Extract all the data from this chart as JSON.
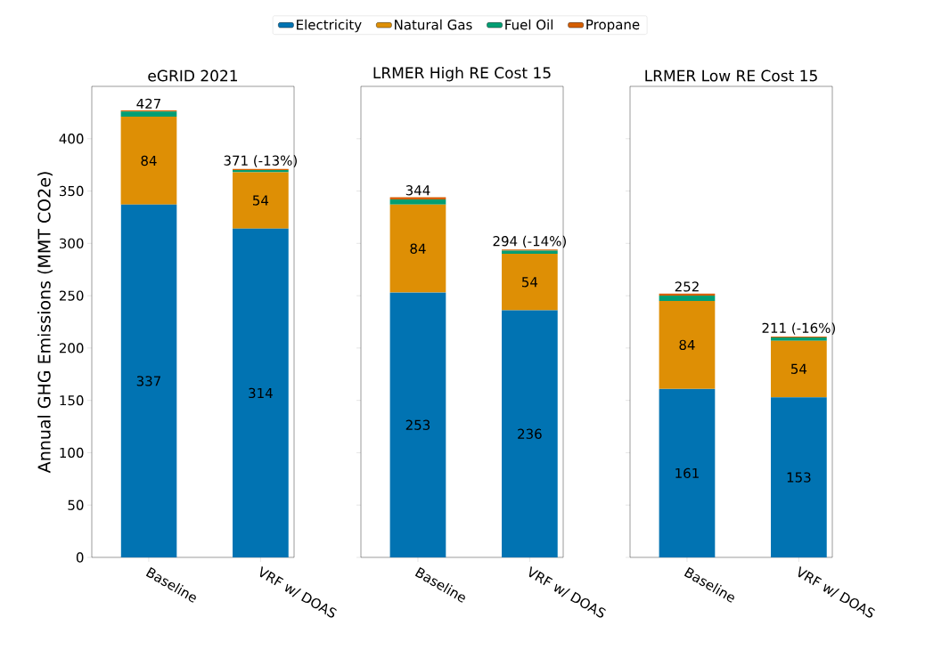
{
  "chart_data": [
    {
      "type": "bar",
      "stacked": true,
      "title": "eGRID 2021",
      "ylabel": "Annual GHG Emissions (MMT CO2e)",
      "categories": [
        "Baseline",
        "VRF w/ DOAS"
      ],
      "ylim": [
        0,
        450
      ],
      "yticks": [
        0,
        50,
        100,
        150,
        200,
        250,
        300,
        350,
        400
      ],
      "legend": "top",
      "totals": [
        "427",
        "371 (-13%)"
      ],
      "series": [
        {
          "name": "Electricity",
          "color": "#0173b2",
          "values": [
            337,
            314
          ],
          "value_labels": [
            "337",
            "314"
          ]
        },
        {
          "name": "Natural Gas",
          "color": "#de8f05",
          "values": [
            84,
            54
          ],
          "value_labels": [
            "84",
            "54"
          ]
        },
        {
          "name": "Fuel Oil",
          "color": "#029e73",
          "values": [
            5,
            2
          ]
        },
        {
          "name": "Propane",
          "color": "#d55e00",
          "values": [
            1,
            1
          ]
        }
      ]
    },
    {
      "type": "bar",
      "stacked": true,
      "title": "LRMER High RE Cost 15",
      "categories": [
        "Baseline",
        "VRF w/ DOAS"
      ],
      "ylim": [
        0,
        450
      ],
      "yticks": [
        0,
        50,
        100,
        150,
        200,
        250,
        300,
        350,
        400
      ],
      "tick_labels": "x",
      "totals": [
        "344",
        "294 (-14%)"
      ],
      "series": [
        {
          "color": "#0173b2",
          "values": [
            253,
            236
          ],
          "value_labels": [
            "253",
            "236"
          ]
        },
        {
          "color": "#de8f05",
          "values": [
            84,
            54
          ],
          "value_labels": [
            "84",
            "54"
          ]
        },
        {
          "color": "#029e73",
          "values": [
            5,
            3
          ]
        },
        {
          "color": "#d55e00",
          "values": [
            2,
            1
          ]
        }
      ]
    },
    {
      "type": "bar",
      "stacked": true,
      "title": "LRMER Low RE Cost 15",
      "categories": [
        "Baseline",
        "VRF w/ DOAS"
      ],
      "ylim": [
        0,
        450
      ],
      "yticks": [
        0,
        50,
        100,
        150,
        200,
        250,
        300,
        350,
        400
      ],
      "tick_labels": "x",
      "totals": [
        "252",
        "211 (-16%)"
      ],
      "series": [
        {
          "color": "#0173b2",
          "values": [
            161,
            153
          ],
          "value_labels": [
            "161",
            "153"
          ]
        },
        {
          "color": "#de8f05",
          "values": [
            84,
            54
          ],
          "value_labels": [
            "84",
            "54"
          ]
        },
        {
          "color": "#029e73",
          "values": [
            5,
            3
          ]
        },
        {
          "color": "#d55e00",
          "values": [
            2,
            1
          ]
        }
      ]
    }
  ]
}
